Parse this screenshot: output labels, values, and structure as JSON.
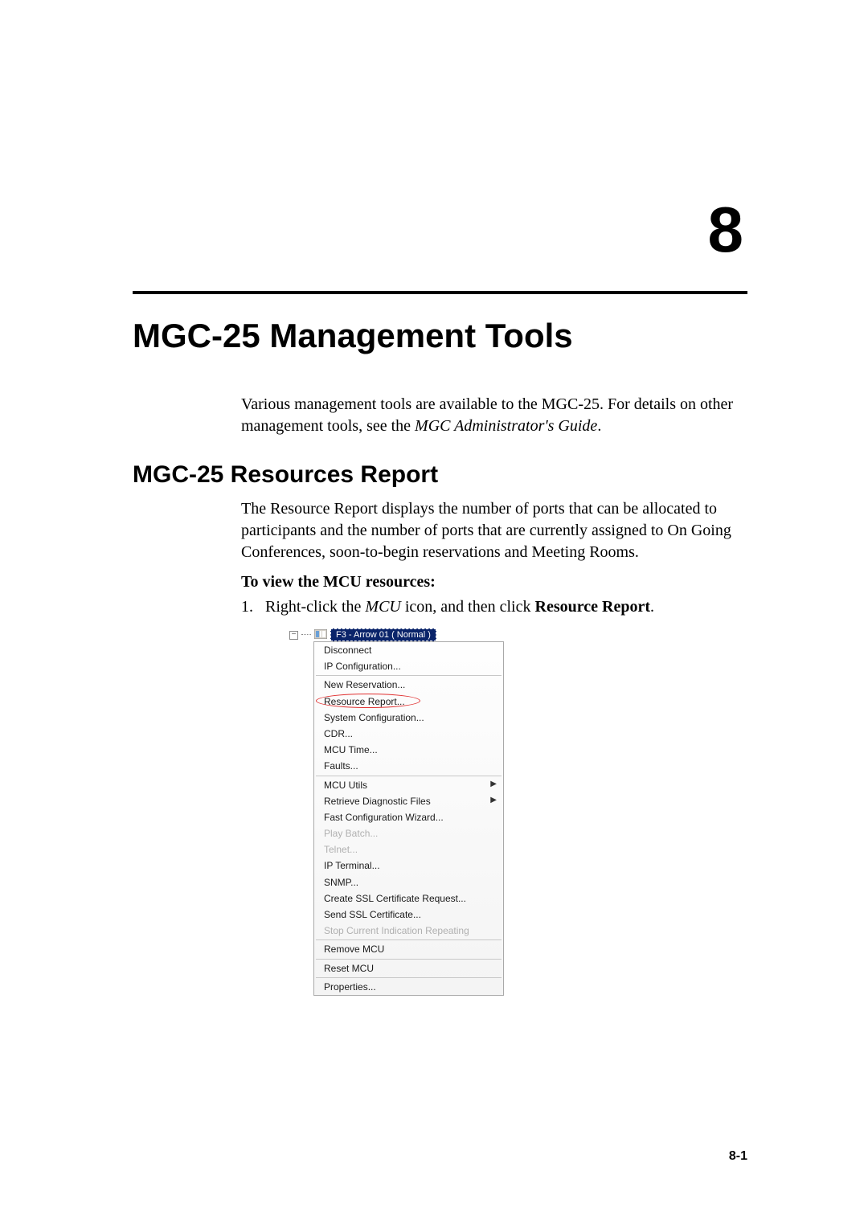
{
  "chapter": {
    "number": "8",
    "title": "MGC-25 Management Tools"
  },
  "intro": {
    "text": "Various management tools are available to the MGC-25. For details on other management tools, see the ",
    "italic": "MGC Administrator's Guide",
    "after": "."
  },
  "section": {
    "title": "MGC-25 Resources Report",
    "para": "The Resource Report displays the number of ports that can be allocated to participants and the number of ports that are currently assigned to On Going Conferences, soon-to-begin reservations and Meeting Rooms.",
    "subhead": "To view the MCU resources:",
    "step_num": "1.",
    "step_pre": "Right-click the ",
    "step_italic": "MCU",
    "step_mid": " icon, and then click ",
    "step_bold": "Resource Report",
    "step_after": "."
  },
  "menu": {
    "tree_minus": "−",
    "mcu_label": "F3 - Arrow 01   ( Normal )",
    "items": [
      {
        "label": "Disconnect",
        "disabled": false
      },
      {
        "label": "IP Configuration...",
        "disabled": false
      },
      {
        "sep": true
      },
      {
        "label": "New Reservation...",
        "disabled": false
      },
      {
        "label": "Resource Report...",
        "disabled": false,
        "highlight": true
      },
      {
        "label": "System Configuration...",
        "disabled": false
      },
      {
        "label": "CDR...",
        "disabled": false
      },
      {
        "label": "MCU Time...",
        "disabled": false
      },
      {
        "label": "Faults...",
        "disabled": false
      },
      {
        "sep": true
      },
      {
        "label": "MCU Utils",
        "disabled": false,
        "submenu": true
      },
      {
        "label": "Retrieve Diagnostic Files",
        "disabled": false,
        "submenu": true
      },
      {
        "label": "Fast Configuration Wizard...",
        "disabled": false
      },
      {
        "label": "Play Batch...",
        "disabled": true
      },
      {
        "label": "Telnet...",
        "disabled": true
      },
      {
        "label": "IP Terminal...",
        "disabled": false
      },
      {
        "label": "SNMP...",
        "disabled": false
      },
      {
        "label": "Create SSL Certificate Request...",
        "disabled": false
      },
      {
        "label": "Send SSL Certificate...",
        "disabled": false
      },
      {
        "label": "Stop Current Indication Repeating",
        "disabled": true
      },
      {
        "sep": true
      },
      {
        "label": "Remove MCU",
        "disabled": false
      },
      {
        "sep": true
      },
      {
        "label": "Reset MCU",
        "disabled": false
      },
      {
        "sep": true
      },
      {
        "label": "Properties...",
        "disabled": false
      }
    ]
  },
  "page_number": "8-1"
}
